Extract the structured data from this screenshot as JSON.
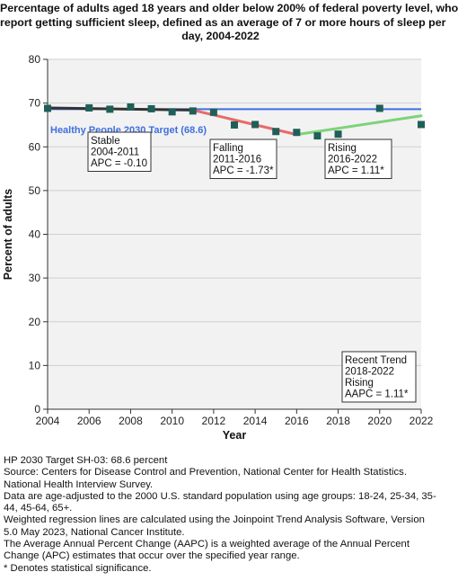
{
  "chart_data": {
    "type": "line",
    "title_lines": [
      "Percentage of adults aged 18 years and older below 200% of federal poverty level, who",
      "report getting sufficient sleep, defined as an average of 7 or more hours of sleep per",
      "day, 2004-2022"
    ],
    "xlabel": "Year",
    "ylabel": "Percent of adults",
    "xlim": [
      2004,
      2022
    ],
    "ylim": [
      0,
      80
    ],
    "x_ticks": [
      2004,
      2006,
      2008,
      2010,
      2012,
      2014,
      2016,
      2018,
      2020,
      2022
    ],
    "y_ticks": [
      0,
      10,
      20,
      30,
      40,
      50,
      60,
      70,
      80
    ],
    "grid": "horizontal",
    "observed": {
      "x": [
        2004,
        2006,
        2007,
        2008,
        2009,
        2010,
        2011,
        2012,
        2013,
        2014,
        2015,
        2016,
        2017,
        2018,
        2020,
        2022
      ],
      "y": [
        68.8,
        68.9,
        68.6,
        69.1,
        68.7,
        68.0,
        68.2,
        67.9,
        65.0,
        65.1,
        63.5,
        63.3,
        62.5,
        62.9,
        68.8,
        65.1
      ],
      "color": "#1f5f57"
    },
    "trend_segments": [
      {
        "x": [
          2004,
          2011
        ],
        "y": [
          68.9,
          68.4
        ],
        "color": "#333333"
      },
      {
        "x": [
          2011,
          2016
        ],
        "y": [
          68.4,
          62.8
        ],
        "color": "#e86a6a"
      },
      {
        "x": [
          2016,
          2022
        ],
        "y": [
          62.8,
          67.1
        ],
        "color": "#7dd37a"
      }
    ],
    "target": {
      "value": 68.6,
      "label": "Healthy People 2030 Target (68.6)",
      "color": "#3f6fde"
    },
    "annotations": [
      {
        "lines": [
          "Stable",
          "2004-2011",
          "APC = -0.10"
        ]
      },
      {
        "lines": [
          "Falling",
          "2011-2016",
          "APC = -1.73*"
        ]
      },
      {
        "lines": [
          "Rising",
          "2016-2022",
          "APC =  1.11*"
        ]
      },
      {
        "lines": [
          "Recent Trend",
          "2018-2022",
          "Rising",
          "AAPC =  1.11*"
        ]
      }
    ]
  },
  "footnotes": [
    "HP 2030 Target SH-03: 68.6 percent",
    "Source: Centers for Disease Control and Prevention, National Center for Health Statistics. National Health Interview Survey.",
    "Data are age-adjusted to the 2000 U.S. standard population using age groups: 18-24, 25-34, 35-44, 45-64, 65+.",
    "Weighted regression lines are calculated using the Joinpoint Trend Analysis Software, Version 5.0 May 2023, National Cancer Institute.",
    "The Average Annual Percent Change (AAPC) is a weighted average of the Annual Percent Change (APC) estimates that occur over the specified year range.",
    "* Denotes statistical significance."
  ]
}
